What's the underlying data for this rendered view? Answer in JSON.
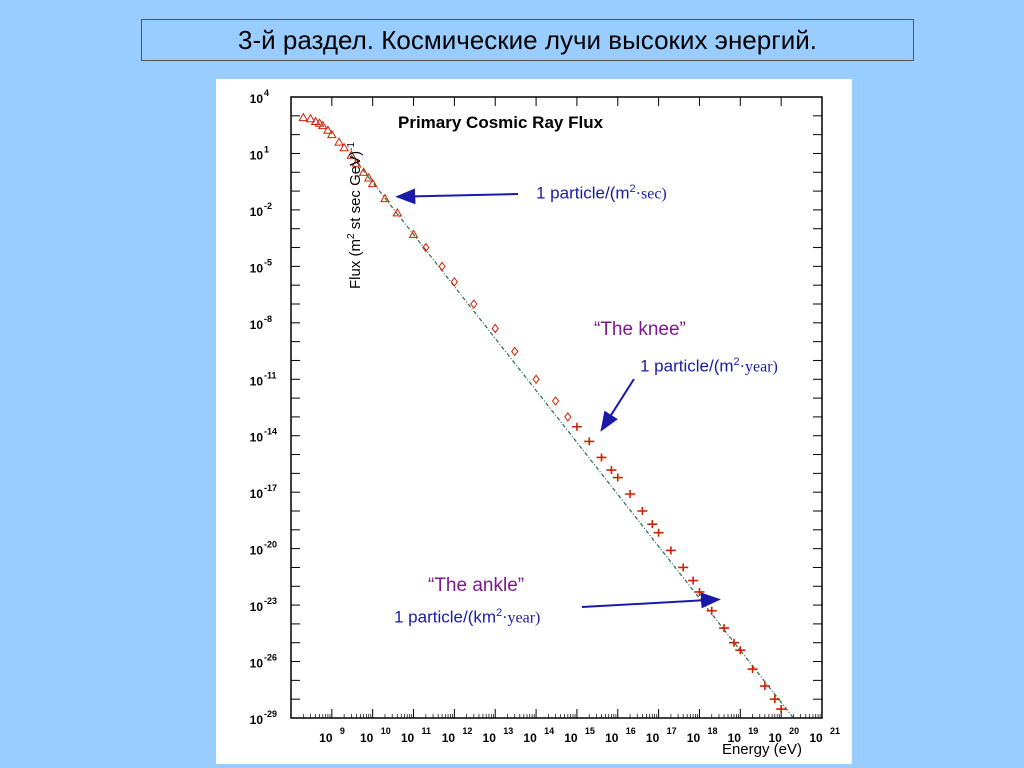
{
  "slide": {
    "title": "3-й раздел. Космические лучи высоких энергий."
  },
  "colors": {
    "background": "#99ccff",
    "data": "#cc2200",
    "arrow": "#1a1aa8",
    "label": "#7a1a8a",
    "fit_line": "#2a6a4a"
  },
  "chart_data": {
    "type": "scatter",
    "title": "Primary Cosmic Ray Flux",
    "xlabel": "Energy (eV)",
    "ylabel_parts": {
      "a": "Flux (m",
      "b": "2",
      "c": " st sec GeV)",
      "d": "-1"
    },
    "x_scale": "log",
    "y_scale": "log",
    "xlim": [
      100000000.0,
      1e+21
    ],
    "ylim": [
      1e-29,
      10000.0
    ],
    "x_tick_labels": [
      {
        "base": "10",
        "exp": "9",
        "value": 1000000000.0
      },
      {
        "base": "10",
        "exp": "10",
        "value": 10000000000.0
      },
      {
        "base": "10",
        "exp": "11",
        "value": 100000000000.0
      },
      {
        "base": "10",
        "exp": "12",
        "value": 1000000000000.0
      },
      {
        "base": "10",
        "exp": "13",
        "value": 10000000000000.0
      },
      {
        "base": "10",
        "exp": "14",
        "value": 100000000000000.0
      },
      {
        "base": "10",
        "exp": "15",
        "value": 1000000000000000.0
      },
      {
        "base": "10",
        "exp": "16",
        "value": 1e+16
      },
      {
        "base": "10",
        "exp": "17",
        "value": 1e+17
      },
      {
        "base": "10",
        "exp": "18",
        "value": 1e+18
      },
      {
        "base": "10",
        "exp": "19",
        "value": 1e+19
      },
      {
        "base": "10",
        "exp": "20",
        "value": 1e+20
      },
      {
        "base": "10",
        "exp": "21",
        "value": 1e+21
      }
    ],
    "y_tick_labels": [
      {
        "base": "10",
        "exp": "4",
        "value": 10000.0
      },
      {
        "base": "10",
        "exp": "1",
        "value": 10.0
      },
      {
        "base": "10",
        "exp": "-2",
        "value": 0.01
      },
      {
        "base": "10",
        "exp": "-5",
        "value": 1e-05
      },
      {
        "base": "10",
        "exp": "-8",
        "value": 1e-08
      },
      {
        "base": "10",
        "exp": "-11",
        "value": 1e-11
      },
      {
        "base": "10",
        "exp": "-14",
        "value": 1e-14
      },
      {
        "base": "10",
        "exp": "-17",
        "value": 1e-17
      },
      {
        "base": "10",
        "exp": "-20",
        "value": 1e-20
      },
      {
        "base": "10",
        "exp": "-23",
        "value": 1e-23
      },
      {
        "base": "10",
        "exp": "-26",
        "value": 1e-26
      },
      {
        "base": "10",
        "exp": "-29",
        "value": 1e-29
      }
    ],
    "series": [
      {
        "marker": "triangle",
        "points": [
          [
            200000000.0,
            800
          ],
          [
            300000000.0,
            700
          ],
          [
            400000000.0,
            500
          ],
          [
            500000000.0,
            400
          ],
          [
            600000000.0,
            300
          ],
          [
            800000000.0,
            170
          ],
          [
            1000000000.0,
            100
          ],
          [
            1500000000.0,
            40
          ],
          [
            2000000000.0,
            20
          ],
          [
            3000000000.0,
            8
          ],
          [
            4000000000.0,
            3
          ],
          [
            6000000000.0,
            1
          ],
          [
            8000000000.0,
            0.5
          ],
          [
            10000000000.0,
            0.25
          ],
          [
            20000000000.0,
            0.04
          ],
          [
            40000000000.0,
            0.007
          ],
          [
            100000000000.0,
            0.0005
          ]
        ]
      },
      {
        "marker": "diamond",
        "points": [
          [
            200000000000.0,
            0.0001
          ],
          [
            500000000000.0,
            1e-05
          ],
          [
            1000000000000.0,
            1.5e-06
          ],
          [
            3000000000000.0,
            1e-07
          ],
          [
            10000000000000.0,
            5e-09
          ],
          [
            30000000000000.0,
            3e-10
          ],
          [
            100000000000000.0,
            1e-11
          ],
          [
            300000000000000.0,
            7e-13
          ],
          [
            600000000000000.0,
            1e-13
          ]
        ]
      },
      {
        "marker": "cross",
        "points": [
          [
            1000000000000000.0,
            3e-14
          ],
          [
            2000000000000000.0,
            5e-15
          ],
          [
            4000000000000000.0,
            7e-16
          ],
          [
            7000000000000000.0,
            1.5e-16
          ],
          [
            1e+16,
            6e-17
          ],
          [
            2e+16,
            8e-18
          ],
          [
            4e+16,
            1e-18
          ],
          [
            7e+16,
            2e-19
          ],
          [
            1e+17,
            7e-20
          ],
          [
            2e+17,
            8e-21
          ],
          [
            4e+17,
            1e-21
          ],
          [
            7e+17,
            2e-22
          ],
          [
            1e+18,
            5e-23
          ],
          [
            2e+18,
            5e-24
          ],
          [
            4e+18,
            6e-25
          ],
          [
            7e+18,
            1e-25
          ],
          [
            1e+19,
            4e-26
          ],
          [
            2e+19,
            4e-27
          ],
          [
            4e+19,
            5e-28
          ],
          [
            7e+19,
            1e-28
          ],
          [
            1e+20,
            3e-29
          ]
        ]
      }
    ],
    "fit_line": [
      [
        3000000000.0,
        8
      ],
      [
        2e+20,
        1e-29
      ]
    ],
    "annotations": [
      {
        "id": "sec",
        "text": "1 particle/(m",
        "sup": "2",
        "tail": "·sec)",
        "arrow_to": [
          40000000000.0,
          0.05
        ]
      },
      {
        "id": "knee_label",
        "text": "“The knee”"
      },
      {
        "id": "year",
        "text": "1 particle/(m",
        "sup": "2",
        "tail": "·year)",
        "arrow_to": [
          4000000000000000.0,
          2e-14
        ]
      },
      {
        "id": "ankle_label",
        "text": "“The ankle”"
      },
      {
        "id": "km_year",
        "text": "1 particle/(km",
        "sup": "2",
        "tail": "·year)",
        "arrow_to": [
          3e+18,
          2e-23
        ]
      }
    ]
  }
}
